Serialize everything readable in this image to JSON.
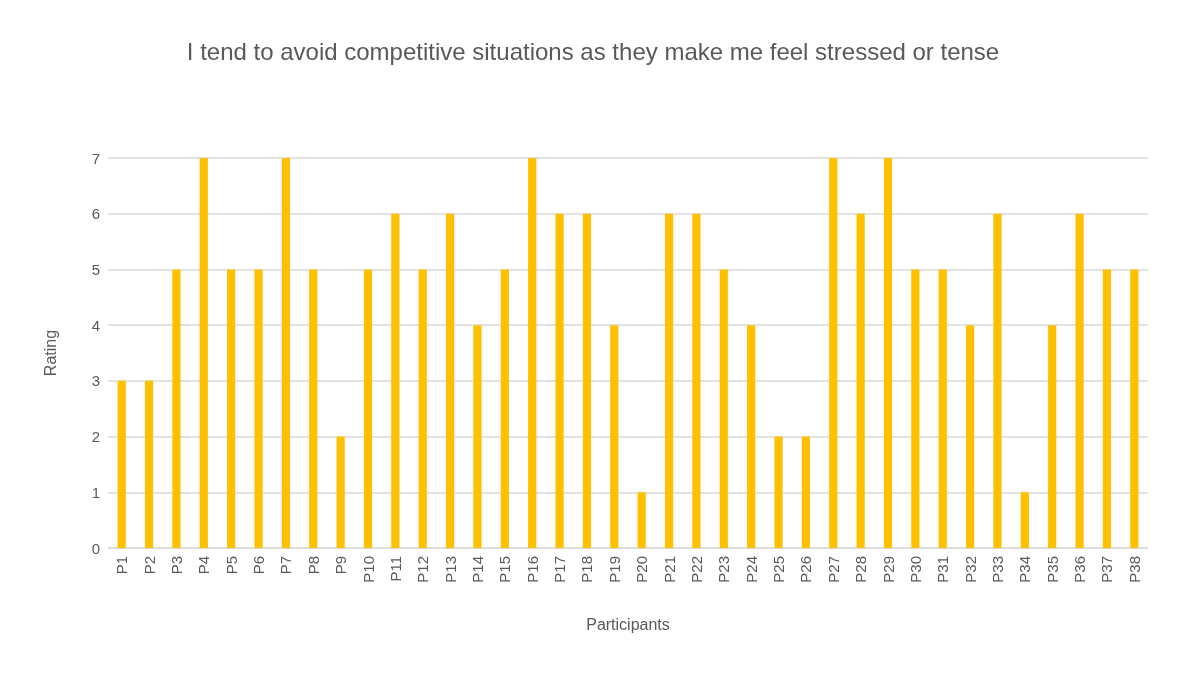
{
  "chart_data": {
    "type": "bar",
    "title": "I tend to avoid competitive situations as they make me feel stressed or tense",
    "xlabel": "Participants",
    "ylabel": "Rating",
    "categories": [
      "P1",
      "P2",
      "P3",
      "P4",
      "P5",
      "P6",
      "P7",
      "P8",
      "P9",
      "P10",
      "P11",
      "P12",
      "P13",
      "P14",
      "P15",
      "P16",
      "P17",
      "P18",
      "P19",
      "P20",
      "P21",
      "P22",
      "P23",
      "P24",
      "P25",
      "P26",
      "P27",
      "P28",
      "P29",
      "P30",
      "P31",
      "P32",
      "P33",
      "P34",
      "P35",
      "P36",
      "P37",
      "P38"
    ],
    "values": [
      3,
      3,
      5,
      7,
      5,
      5,
      7,
      5,
      2,
      5,
      6,
      5,
      6,
      4,
      5,
      7,
      6,
      6,
      4,
      1,
      6,
      6,
      5,
      4,
      2,
      2,
      7,
      6,
      7,
      5,
      5,
      4,
      6,
      1,
      4,
      6,
      5,
      5
    ],
    "color": "#ffc000",
    "ylim": [
      0,
      7
    ],
    "yticks": [
      0,
      1,
      2,
      3,
      4,
      5,
      6,
      7
    ],
    "grid": "y"
  }
}
